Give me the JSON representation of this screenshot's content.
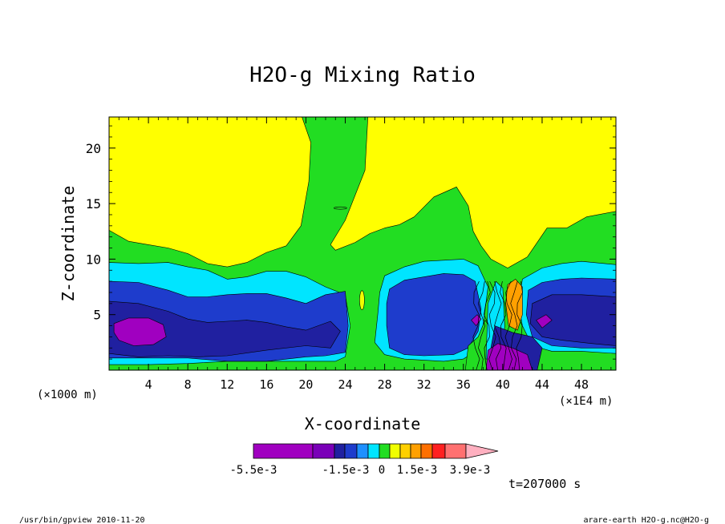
{
  "chart_data": {
    "type": "heatmap",
    "title": "H2O-g Mixing Ratio",
    "xlabel": "X-coordinate",
    "ylabel": "Z-coordinate",
    "x_unit_left": "(×1000 m)",
    "x_unit_right": "(×1E4 m)",
    "xlim": [
      0,
      51.5
    ],
    "ylim": [
      0,
      22.8
    ],
    "x_ticks": [
      4,
      8,
      12,
      16,
      20,
      24,
      28,
      32,
      36,
      40,
      44,
      48
    ],
    "y_ticks": [
      5,
      10,
      15,
      20
    ],
    "colorbar": {
      "colors": [
        "#a000c0",
        "#7a00b8",
        "#2020a0",
        "#1e3ccc",
        "#1e90ff",
        "#00e5ff",
        "#22dd22",
        "#f0ff00",
        "#ffd000",
        "#ffa000",
        "#ff7000",
        "#ff2020",
        "#ff7070",
        "#ffb0c0"
      ],
      "labels": [
        "-5.5e-3",
        "-1.5e-3",
        "0",
        "1.5e-3",
        "3.9e-3"
      ]
    },
    "background_level_color": "#ffff00",
    "regions": [
      {
        "level": "green",
        "color": "#22dd22",
        "points": [
          [
            0,
            12.6
          ],
          [
            2,
            11.6
          ],
          [
            4,
            11.3
          ],
          [
            6,
            11
          ],
          [
            8,
            10.5
          ],
          [
            10,
            9.6
          ],
          [
            12,
            9.3
          ],
          [
            14,
            9.7
          ],
          [
            16,
            10.6
          ],
          [
            18,
            11.2
          ],
          [
            19.5,
            13
          ],
          [
            20.3,
            17
          ],
          [
            20.5,
            20.5
          ],
          [
            19.6,
            22.8
          ],
          [
            26.3,
            22.8
          ],
          [
            26,
            18
          ],
          [
            24,
            13.5
          ],
          [
            22.5,
            11.3
          ],
          [
            23,
            10.8
          ],
          [
            25,
            11.5
          ],
          [
            26.5,
            12.3
          ],
          [
            28,
            12.8
          ],
          [
            29.5,
            13.1
          ],
          [
            31,
            13.8
          ],
          [
            33,
            15.6
          ],
          [
            35.3,
            16.5
          ],
          [
            36.5,
            14.8
          ],
          [
            37,
            12.5
          ],
          [
            37.8,
            11.2
          ],
          [
            38.8,
            10
          ],
          [
            40.5,
            9.2
          ],
          [
            42.5,
            10.2
          ],
          [
            44.5,
            12.8
          ],
          [
            46.5,
            12.8
          ],
          [
            48.5,
            13.8
          ],
          [
            51.5,
            14.3
          ],
          [
            51.5,
            0
          ],
          [
            0,
            0
          ]
        ]
      },
      {
        "level": "cyan",
        "color": "#00e5ff",
        "points": [
          [
            0,
            9.7
          ],
          [
            3,
            9.6
          ],
          [
            6,
            9.7
          ],
          [
            8,
            9.3
          ],
          [
            10,
            9
          ],
          [
            12,
            8.2
          ],
          [
            14,
            8.4
          ],
          [
            16,
            8.9
          ],
          [
            18,
            8.9
          ],
          [
            20,
            8.4
          ],
          [
            22,
            7.5
          ],
          [
            24,
            6.8
          ],
          [
            24.5,
            4
          ],
          [
            24,
            1.2
          ],
          [
            23,
            0.8
          ],
          [
            20,
            0.8
          ],
          [
            16,
            0.8
          ],
          [
            12,
            0.8
          ],
          [
            8,
            0.6
          ],
          [
            4,
            0.5
          ],
          [
            0,
            0.5
          ]
        ]
      },
      {
        "level": "blue",
        "color": "#1e3ccc",
        "points": [
          [
            0,
            8
          ],
          [
            3,
            7.9
          ],
          [
            6,
            7.2
          ],
          [
            8,
            6.6
          ],
          [
            10,
            6.6
          ],
          [
            12,
            6.8
          ],
          [
            14,
            6.9
          ],
          [
            16,
            6.9
          ],
          [
            18,
            6.5
          ],
          [
            20,
            6
          ],
          [
            22,
            6.8
          ],
          [
            24,
            7.1
          ],
          [
            24.3,
            4
          ],
          [
            24,
            1.6
          ],
          [
            22,
            1.3
          ],
          [
            20,
            1.2
          ],
          [
            16,
            0.8
          ],
          [
            12,
            0.8
          ],
          [
            8,
            1.1
          ],
          [
            4,
            1.1
          ],
          [
            0,
            1.1
          ]
        ]
      },
      {
        "level": "navy",
        "color": "#2020a0",
        "points": [
          [
            0,
            6.2
          ],
          [
            3,
            6
          ],
          [
            6,
            5.3
          ],
          [
            8,
            4.6
          ],
          [
            10,
            4.3
          ],
          [
            12,
            4.4
          ],
          [
            14,
            4.5
          ],
          [
            16,
            4.3
          ],
          [
            18,
            3.9
          ],
          [
            20,
            3.6
          ],
          [
            22.5,
            4.4
          ],
          [
            23.5,
            3.5
          ],
          [
            22.5,
            2
          ],
          [
            20,
            2.2
          ],
          [
            16,
            1.8
          ],
          [
            12,
            1.3
          ],
          [
            9,
            1.2
          ],
          [
            6,
            1.3
          ],
          [
            3,
            1.2
          ],
          [
            0,
            1.5
          ]
        ]
      },
      {
        "level": "purple",
        "color": "#a000c0",
        "points": [
          [
            0.5,
            4.2
          ],
          [
            2,
            4.7
          ],
          [
            4,
            4.7
          ],
          [
            5.5,
            4.1
          ],
          [
            5.8,
            3
          ],
          [
            4.5,
            2.3
          ],
          [
            2.5,
            2.2
          ],
          [
            1,
            2.7
          ],
          [
            0.5,
            3.4
          ]
        ]
      },
      {
        "level": "cyan",
        "color": "#00e5ff",
        "points": [
          [
            28,
            8.5
          ],
          [
            30,
            9.3
          ],
          [
            32,
            9.8
          ],
          [
            34,
            9.9
          ],
          [
            36,
            10
          ],
          [
            37.5,
            9.4
          ],
          [
            38.5,
            7.5
          ],
          [
            38,
            4
          ],
          [
            37,
            1.6
          ],
          [
            36,
            1
          ],
          [
            34,
            0.8
          ],
          [
            30,
            1
          ],
          [
            28,
            1.4
          ],
          [
            27,
            2.5
          ],
          [
            27.3,
            5
          ],
          [
            27.5,
            7
          ]
        ]
      },
      {
        "level": "blue",
        "color": "#1e3ccc",
        "points": [
          [
            28.5,
            7.3
          ],
          [
            30,
            8.1
          ],
          [
            32,
            8.4
          ],
          [
            34,
            8.7
          ],
          [
            36,
            8.6
          ],
          [
            37.2,
            8
          ],
          [
            37.8,
            5.5
          ],
          [
            37.5,
            3.5
          ],
          [
            36.5,
            2
          ],
          [
            35,
            1.4
          ],
          [
            32,
            1.3
          ],
          [
            30,
            1.4
          ],
          [
            28.5,
            2
          ],
          [
            28.2,
            4
          ],
          [
            28.2,
            6
          ]
        ]
      },
      {
        "level": "cyan",
        "color": "#00e5ff",
        "points": [
          [
            42,
            8.2
          ],
          [
            44,
            9.2
          ],
          [
            46,
            9.6
          ],
          [
            48,
            9.8
          ],
          [
            51.5,
            9.5
          ],
          [
            51.5,
            1.5
          ],
          [
            48,
            1.7
          ],
          [
            45,
            1.7
          ],
          [
            43,
            2.2
          ],
          [
            42,
            4
          ],
          [
            41.6,
            6
          ]
        ]
      },
      {
        "level": "blue",
        "color": "#1e3ccc",
        "points": [
          [
            42.6,
            7.2
          ],
          [
            44,
            7.9
          ],
          [
            46,
            8.2
          ],
          [
            48,
            8.3
          ],
          [
            51.5,
            8.2
          ],
          [
            51.5,
            2
          ],
          [
            48,
            2
          ],
          [
            45,
            2.2
          ],
          [
            43,
            3
          ],
          [
            42.4,
            5
          ]
        ]
      },
      {
        "level": "navy",
        "color": "#2020a0",
        "points": [
          [
            43,
            6
          ],
          [
            45,
            6.8
          ],
          [
            48,
            6.8
          ],
          [
            51.5,
            6.6
          ],
          [
            51.5,
            2.2
          ],
          [
            49,
            2.4
          ],
          [
            46,
            2.7
          ],
          [
            44,
            3
          ],
          [
            42.8,
            4.2
          ]
        ]
      },
      {
        "level": "green",
        "color": "#22dd22",
        "points": [
          [
            36.5,
            2.2
          ],
          [
            37.5,
            3
          ],
          [
            38.2,
            4.5
          ],
          [
            39,
            3.5
          ],
          [
            40,
            1.5
          ],
          [
            40.5,
            0
          ],
          [
            36.2,
            0
          ]
        ]
      },
      {
        "level": "cyan",
        "color": "#00e5ff",
        "points": [
          [
            38.5,
            6
          ],
          [
            39.3,
            8
          ],
          [
            40,
            7.4
          ],
          [
            40.2,
            4
          ],
          [
            40,
            1
          ],
          [
            38.3,
            1
          ]
        ]
      },
      {
        "level": "orange",
        "color": "#ffa000",
        "points": [
          [
            40.5,
            7.7
          ],
          [
            41.3,
            8.2
          ],
          [
            42,
            7.5
          ],
          [
            42,
            5
          ],
          [
            41.5,
            3.6
          ],
          [
            40.6,
            4
          ],
          [
            40.3,
            6
          ]
        ]
      },
      {
        "level": "navy",
        "color": "#2020a0",
        "points": [
          [
            39.2,
            4
          ],
          [
            41,
            3.4
          ],
          [
            43,
            3
          ],
          [
            44,
            2
          ],
          [
            43.5,
            0
          ],
          [
            39,
            0
          ],
          [
            38.8,
            2
          ]
        ]
      },
      {
        "level": "purple",
        "color": "#a000c0",
        "points": [
          [
            38.5,
            1.8
          ],
          [
            39.5,
            2.4
          ],
          [
            41,
            2
          ],
          [
            42.5,
            1.4
          ],
          [
            43,
            0
          ],
          [
            38.3,
            0
          ]
        ]
      },
      {
        "level": "purple",
        "color": "#a000c0",
        "points": [
          [
            43.4,
            4.5
          ],
          [
            44.4,
            5
          ],
          [
            45,
            4.5
          ],
          [
            44,
            3.8
          ]
        ]
      },
      {
        "level": "purple",
        "color": "#a000c0",
        "points": [
          [
            36.8,
            4.5
          ],
          [
            37.4,
            5
          ],
          [
            37.8,
            4.6
          ],
          [
            37.3,
            4
          ]
        ]
      }
    ],
    "hatch_lines_note": "dense thin contour lines near x=37-43",
    "time_label": "t=207000 s"
  },
  "footer": {
    "left": "/usr/bin/gpview  2010-11-20",
    "right": "arare-earth_H2O-g.nc@H2O-g"
  }
}
